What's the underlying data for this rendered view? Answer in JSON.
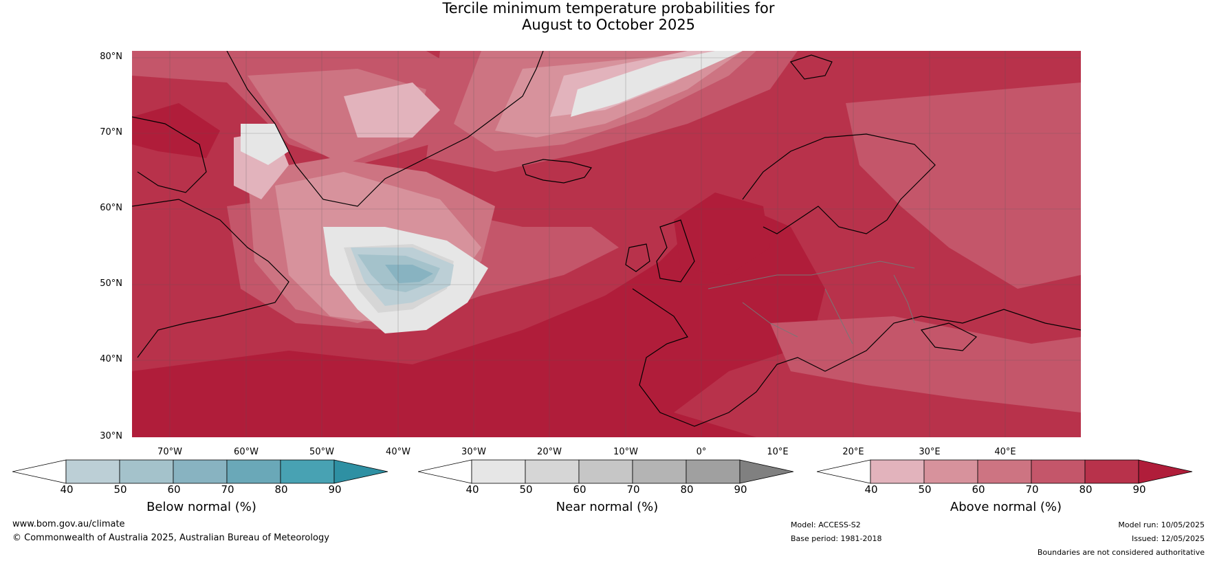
{
  "title": {
    "line1": "Tercile minimum temperature probabilities for",
    "line2": "August to October 2025"
  },
  "lat_labels": [
    "80°N",
    "70°N",
    "60°N",
    "50°N",
    "40°N",
    "30°N"
  ],
  "lon_labels": [
    "70°W",
    "60°W",
    "50°W",
    "40°W",
    "30°W",
    "20°W",
    "10°W",
    "0°",
    "10°E",
    "20°E",
    "30°E",
    "40°E"
  ],
  "colorbars": [
    {
      "title": "Below normal (%)",
      "ticks": [
        "40",
        "50",
        "60",
        "70",
        "80",
        "90"
      ],
      "colors": [
        "#ffffff",
        "#bccfd6",
        "#a4c2cb",
        "#88b3c1",
        "#6aa8b8",
        "#48a2b3",
        "#2e90a3"
      ]
    },
    {
      "title": "Near normal (%)",
      "ticks": [
        "40",
        "50",
        "60",
        "70",
        "80",
        "90"
      ],
      "colors": [
        "#ffffff",
        "#e6e6e6",
        "#d6d6d6",
        "#c6c6c6",
        "#b4b4b4",
        "#a0a0a0",
        "#808080"
      ]
    },
    {
      "title": "Above normal (%)",
      "ticks": [
        "40",
        "50",
        "60",
        "70",
        "80",
        "90"
      ],
      "colors": [
        "#ffffff",
        "#e2b3bc",
        "#d7929c",
        "#cd7482",
        "#c4566a",
        "#b8324b",
        "#b01d3a"
      ]
    }
  ],
  "footer": {
    "website": "www.bom.gov.au/climate",
    "copyright": "© Commonwealth of Australia 2025, Australian Bureau of Meteorology",
    "model": "Model: ACCESS-S2",
    "base_period": "Base period: 1981-2018",
    "model_run": "Model run: 10/05/2025",
    "issued": "Issued: 12/05/2025",
    "disclaimer": "Boundaries are not considered authoritative"
  },
  "map_colors": {
    "above_90": "#b01d3a",
    "above_80": "#b8324b",
    "above_70": "#c4566a",
    "above_60": "#cd7482",
    "above_50": "#d7929c",
    "above_40": "#e2b3bc",
    "near_40": "#e6e6e6",
    "near_50": "#d6d6d6",
    "below_40": "#bccfd6",
    "below_50": "#a4c2cb",
    "below_60": "#88b3c1"
  }
}
